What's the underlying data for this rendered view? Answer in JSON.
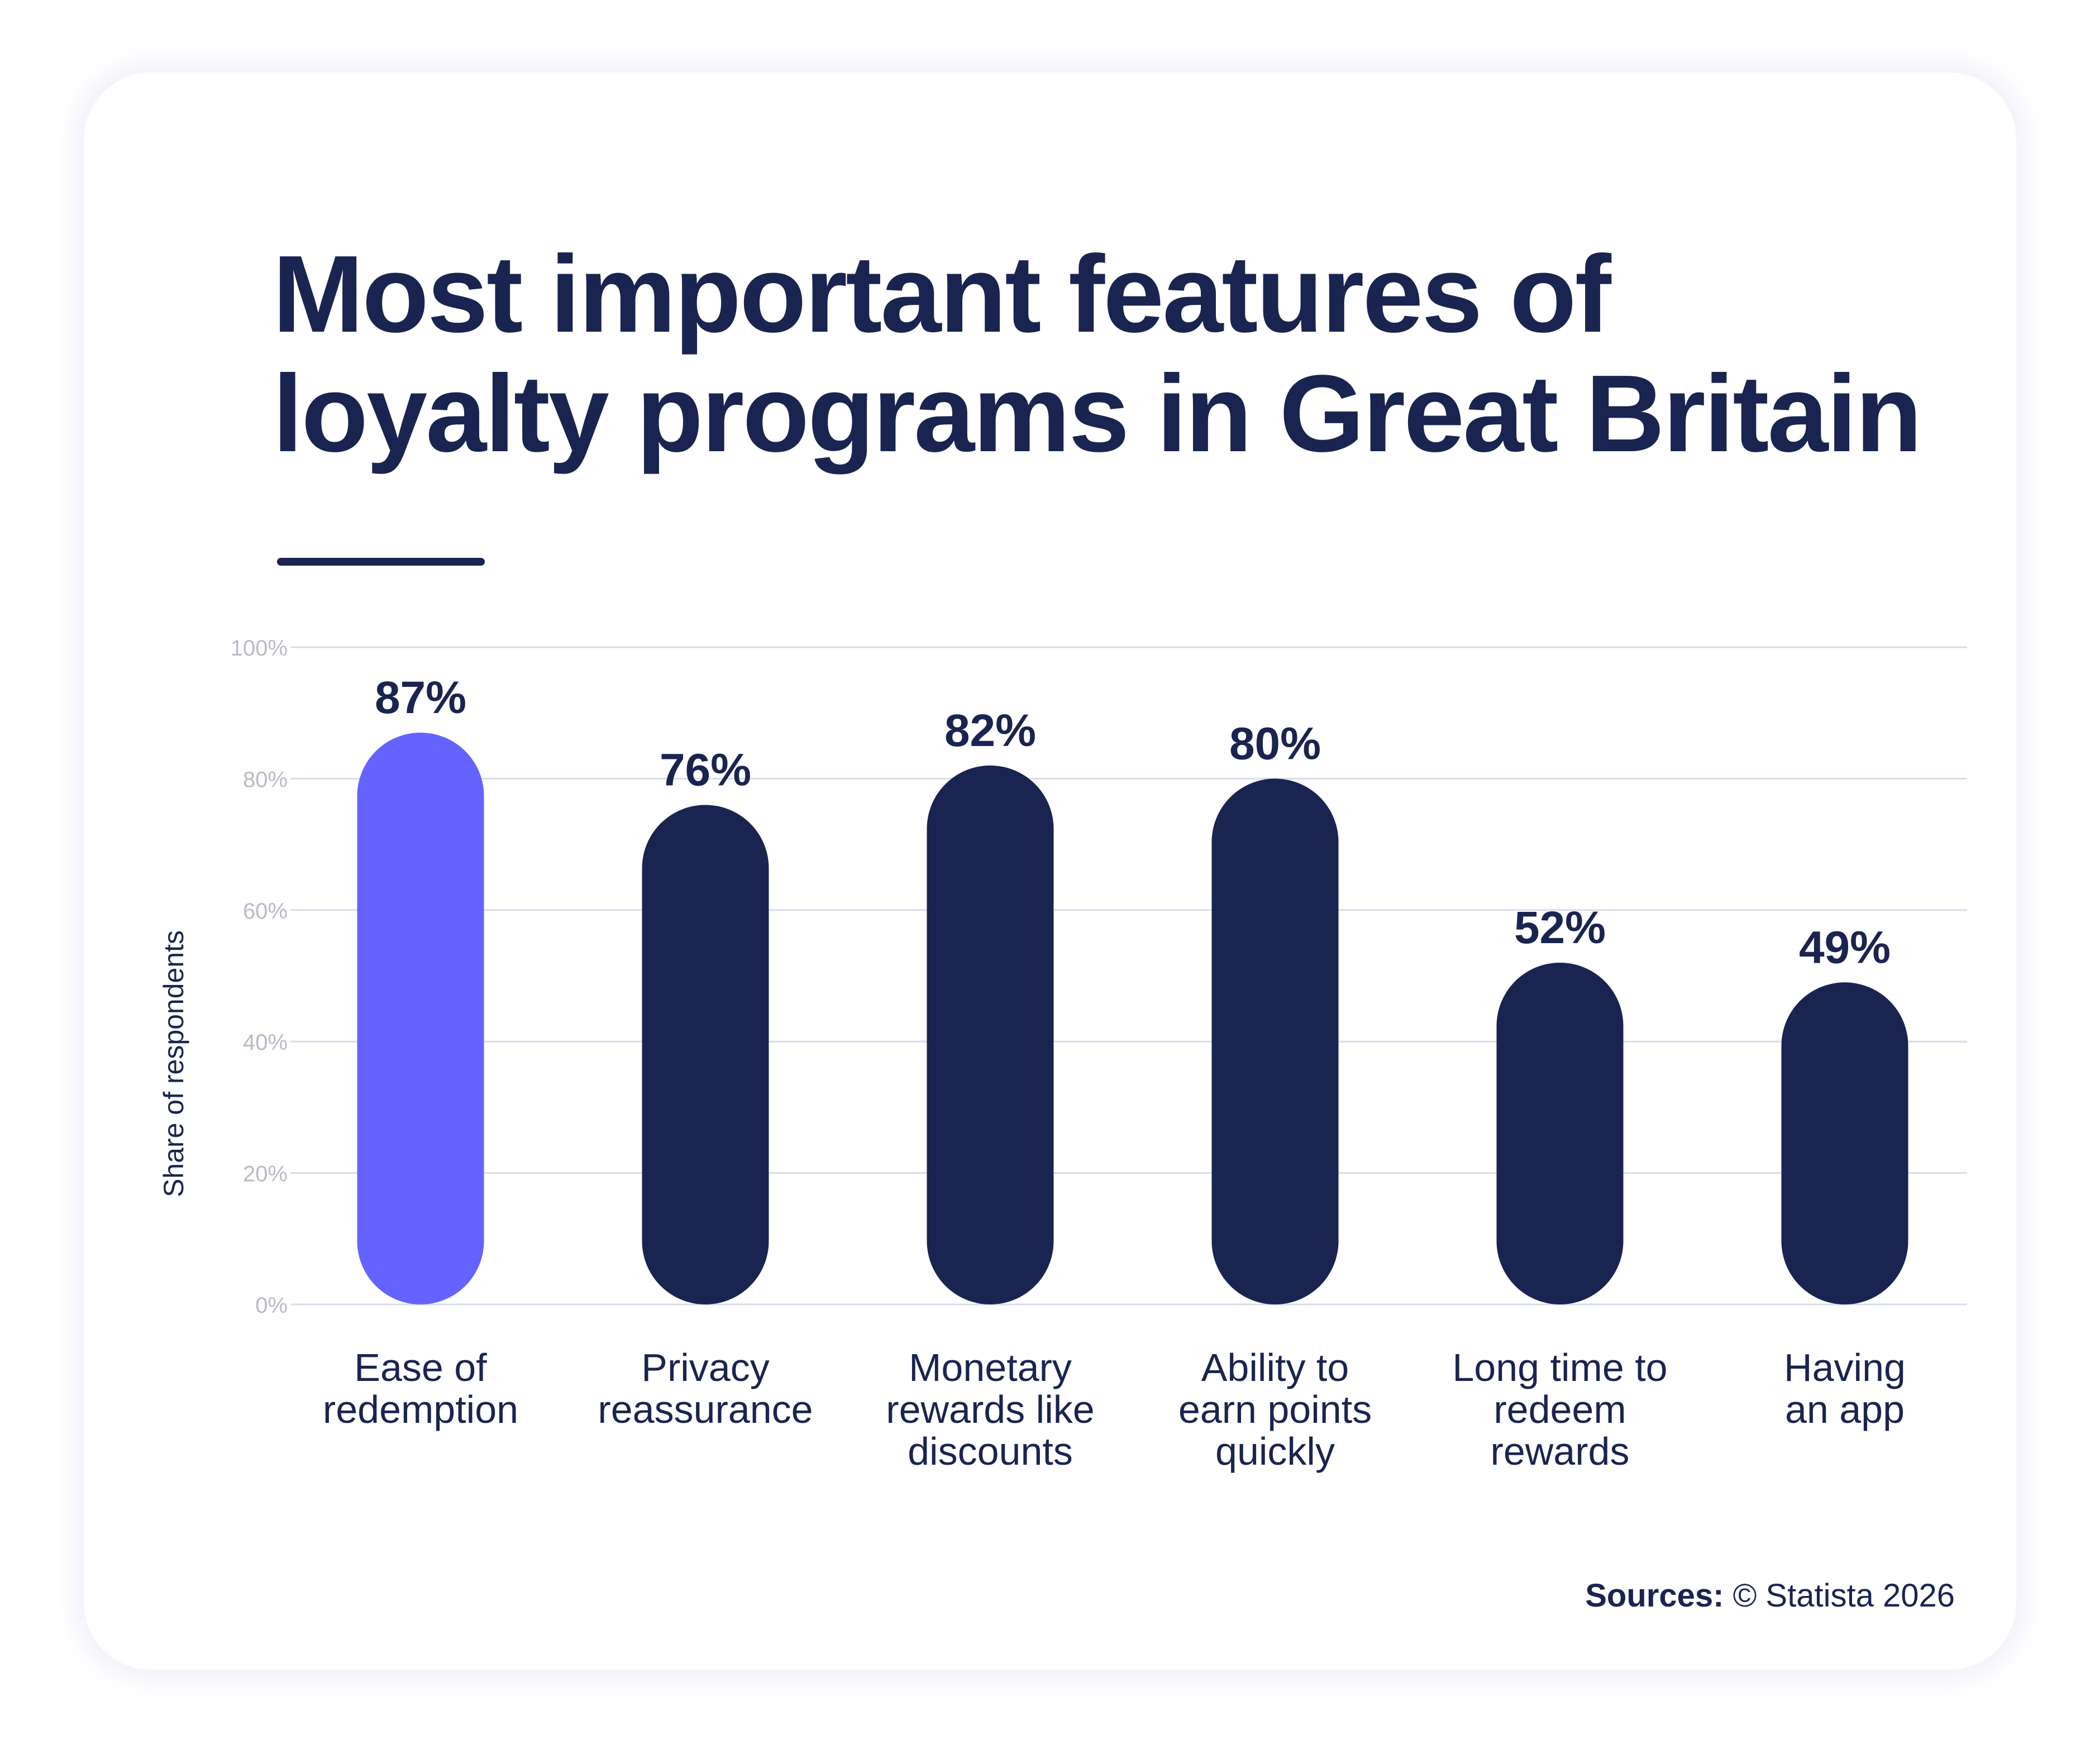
{
  "title_line1": "Most important features of",
  "title_line2": "loyalty programs in Great Britain",
  "source": {
    "label": "Sources:",
    "text": "© Statista 2026"
  },
  "colors": {
    "highlight": "#6563ff",
    "bar": "#1a2450",
    "grid": "#d5deea",
    "tick": "#b8bbc7",
    "text": "#1a2450"
  },
  "chart_data": {
    "type": "bar",
    "title": "Most important features of loyalty programs in Great Britain",
    "ylabel": "Share of respondents",
    "xlabel": "",
    "ylim": [
      0,
      100
    ],
    "yticks": [
      {
        "value": 0,
        "label": "0%"
      },
      {
        "value": 20,
        "label": "20%"
      },
      {
        "value": 40,
        "label": "40%"
      },
      {
        "value": 60,
        "label": "60%"
      },
      {
        "value": 80,
        "label": "80%"
      },
      {
        "value": 100,
        "label": "100%"
      }
    ],
    "grid": true,
    "categories": [
      [
        "Ease of",
        "redemption"
      ],
      [
        "Privacy",
        "reassurance"
      ],
      [
        "Monetary",
        "rewards like",
        "discounts"
      ],
      [
        "Ability to",
        "earn points",
        "quickly"
      ],
      [
        "Long time to",
        "redeem",
        "rewards"
      ],
      [
        "Having",
        "an app"
      ]
    ],
    "values": [
      87,
      76,
      82,
      80,
      52,
      49
    ],
    "value_labels": [
      "87%",
      "76%",
      "82%",
      "80%",
      "52%",
      "49%"
    ],
    "highlight_index": 0
  }
}
